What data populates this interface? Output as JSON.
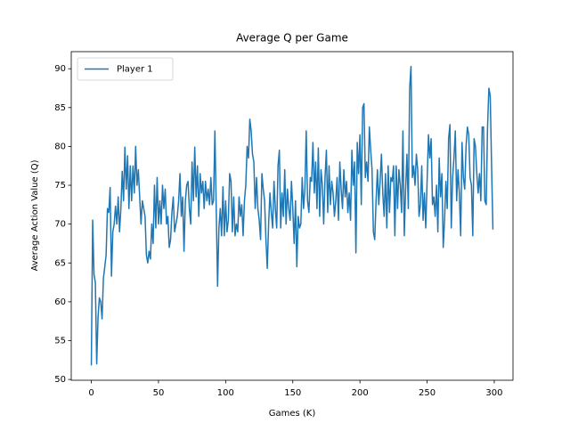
{
  "chart_data": {
    "type": "line",
    "title": "Average Q per Game",
    "xlabel": "Games (K)",
    "ylabel": "Average Action Value (Q)",
    "x": [
      0,
      1,
      2,
      3,
      4,
      5,
      6,
      7,
      8,
      9,
      10,
      11,
      12,
      13,
      14,
      15,
      16,
      17,
      18,
      19,
      20,
      21,
      22,
      23,
      24,
      25,
      26,
      27,
      28,
      29,
      30,
      31,
      32,
      33,
      34,
      35,
      36,
      37,
      38,
      39,
      40,
      41,
      42,
      43,
      44,
      45,
      46,
      47,
      48,
      49,
      50,
      51,
      52,
      53,
      54,
      55,
      56,
      57,
      58,
      59,
      60,
      61,
      62,
      63,
      64,
      65,
      66,
      67,
      68,
      69,
      70,
      71,
      72,
      73,
      74,
      75,
      76,
      77,
      78,
      79,
      80,
      81,
      82,
      83,
      84,
      85,
      86,
      87,
      88,
      89,
      90,
      91,
      92,
      93,
      94,
      95,
      96,
      97,
      98,
      99,
      100,
      101,
      102,
      103,
      104,
      105,
      106,
      107,
      108,
      109,
      110,
      111,
      112,
      113,
      114,
      115,
      116,
      117,
      118,
      119,
      120,
      121,
      122,
      123,
      124,
      125,
      126,
      127,
      128,
      129,
      130,
      131,
      132,
      133,
      134,
      135,
      136,
      137,
      138,
      139,
      140,
      141,
      142,
      143,
      144,
      145,
      146,
      147,
      148,
      149,
      150,
      151,
      152,
      153,
      154,
      155,
      156,
      157,
      158,
      159,
      160,
      161,
      162,
      163,
      164,
      165,
      166,
      167,
      168,
      169,
      170,
      171,
      172,
      173,
      174,
      175,
      176,
      177,
      178,
      179,
      180,
      181,
      182,
      183,
      184,
      185,
      186,
      187,
      188,
      189,
      190,
      191,
      192,
      193,
      194,
      195,
      196,
      197,
      198,
      199,
      200,
      201,
      202,
      203,
      204,
      205,
      206,
      207,
      208,
      209,
      210,
      211,
      212,
      213,
      214,
      215,
      216,
      217,
      218,
      219,
      220,
      221,
      222,
      223,
      224,
      225,
      226,
      227,
      228,
      229,
      230,
      231,
      232,
      233,
      234,
      235,
      236,
      237,
      238,
      239,
      240,
      241,
      242,
      243,
      244,
      245,
      246,
      247,
      248,
      249,
      250,
      251,
      252,
      253,
      254,
      255,
      256,
      257,
      258,
      259,
      260,
      261,
      262,
      263,
      264,
      265,
      266,
      267,
      268,
      269,
      270,
      271,
      272,
      273,
      274,
      275,
      276,
      277,
      278,
      279,
      280,
      281,
      282,
      283,
      284,
      285,
      286,
      287,
      288,
      289,
      290,
      291,
      292,
      293,
      294,
      295,
      296,
      297,
      298,
      299
    ],
    "series": [
      {
        "name": "Player 1",
        "color": "#1f77b4",
        "values": [
          51.8,
          70.5,
          63.5,
          62.5,
          52,
          58,
          60.5,
          60,
          57.8,
          63,
          64.5,
          66,
          72,
          71.5,
          74.7,
          63.3,
          69,
          70,
          72.3,
          70,
          73.5,
          69,
          72,
          76.8,
          73,
          79.9,
          74.5,
          78.8,
          72,
          77.5,
          73,
          77.5,
          74,
          80,
          75,
          77,
          73.5,
          70,
          73,
          72,
          71,
          66,
          65,
          66.5,
          65.5,
          70,
          67.5,
          75,
          69.5,
          76,
          70,
          73,
          70,
          75,
          72,
          74.5,
          70,
          71,
          67,
          68,
          71.5,
          73.5,
          69,
          70,
          71,
          73,
          76.5,
          71,
          73.5,
          66.5,
          73,
          75,
          75.5,
          72,
          70,
          78,
          73,
          79.9,
          73.5,
          77.5,
          71,
          76.5,
          74,
          75.5,
          72,
          75.5,
          73,
          74.5,
          72.5,
          76,
          72.5,
          73,
          82,
          72,
          62,
          69.5,
          72,
          68.5,
          74.8,
          68.5,
          73,
          69,
          70.5,
          76.5,
          75.5,
          69,
          73.5,
          68.5,
          70,
          69,
          73.5,
          71,
          72.5,
          68.5,
          73,
          75,
          80,
          78.5,
          83.5,
          82,
          79,
          78,
          72,
          76,
          72,
          70.5,
          68,
          76.5,
          74.5,
          73,
          68,
          64.3,
          70,
          74,
          71.5,
          69.5,
          75.5,
          72,
          69.5,
          77.5,
          79.5,
          69.5,
          74,
          71,
          77,
          70,
          74.5,
          72,
          70.5,
          75.5,
          72,
          67.5,
          73,
          64.5,
          71,
          69.5,
          70,
          76,
          72,
          74.5,
          82,
          73,
          71.5,
          76,
          75.5,
          80.5,
          74,
          78,
          72,
          79.8,
          71,
          77,
          75,
          70,
          76,
          79.5,
          71.5,
          77.5,
          72.5,
          75.5,
          74,
          71,
          73,
          76,
          70.5,
          78,
          74.5,
          72,
          77,
          73.5,
          75.5,
          71.5,
          74,
          70.5,
          79.5,
          75,
          78,
          66.3,
          80.5,
          76.5,
          81.5,
          72.5,
          85,
          85.5,
          76,
          78,
          75.5,
          82.5,
          79.5,
          77,
          69,
          68,
          73,
          77,
          72.5,
          75.5,
          79,
          74,
          71,
          76.5,
          69.5,
          77.5,
          71.5,
          76,
          75.5,
          77.5,
          68.5,
          77.5,
          72,
          77,
          75,
          71.5,
          82,
          68.5,
          74.5,
          79,
          72,
          87.5,
          90.3,
          76,
          77.5,
          75,
          79,
          77,
          71,
          72.5,
          77.5,
          70.5,
          74,
          69.5,
          75.5,
          81.5,
          78.5,
          81,
          72.5,
          73.5,
          71,
          75,
          69,
          78.5,
          73.5,
          76.5,
          67,
          70.5,
          75.5,
          72,
          81,
          82.8,
          69.5,
          76,
          78.5,
          82,
          73,
          77,
          74,
          68.5,
          80.5,
          76,
          74.5,
          80,
          82.5,
          81.5,
          76,
          75,
          68.5,
          81,
          80,
          76.5,
          74,
          76.5,
          73,
          82.5,
          82.5,
          73,
          72.5,
          82.5,
          87.5,
          86.5,
          77.5,
          69.3
        ]
      }
    ],
    "xlim": [
      -14.95,
      313.95
    ],
    "ylim": [
      49.9,
      92.2
    ],
    "xticks": [
      0,
      50,
      100,
      150,
      200,
      250,
      300
    ],
    "yticks": [
      50,
      55,
      60,
      65,
      70,
      75,
      80,
      85,
      90
    ],
    "legend": "upper left",
    "grid": false
  }
}
